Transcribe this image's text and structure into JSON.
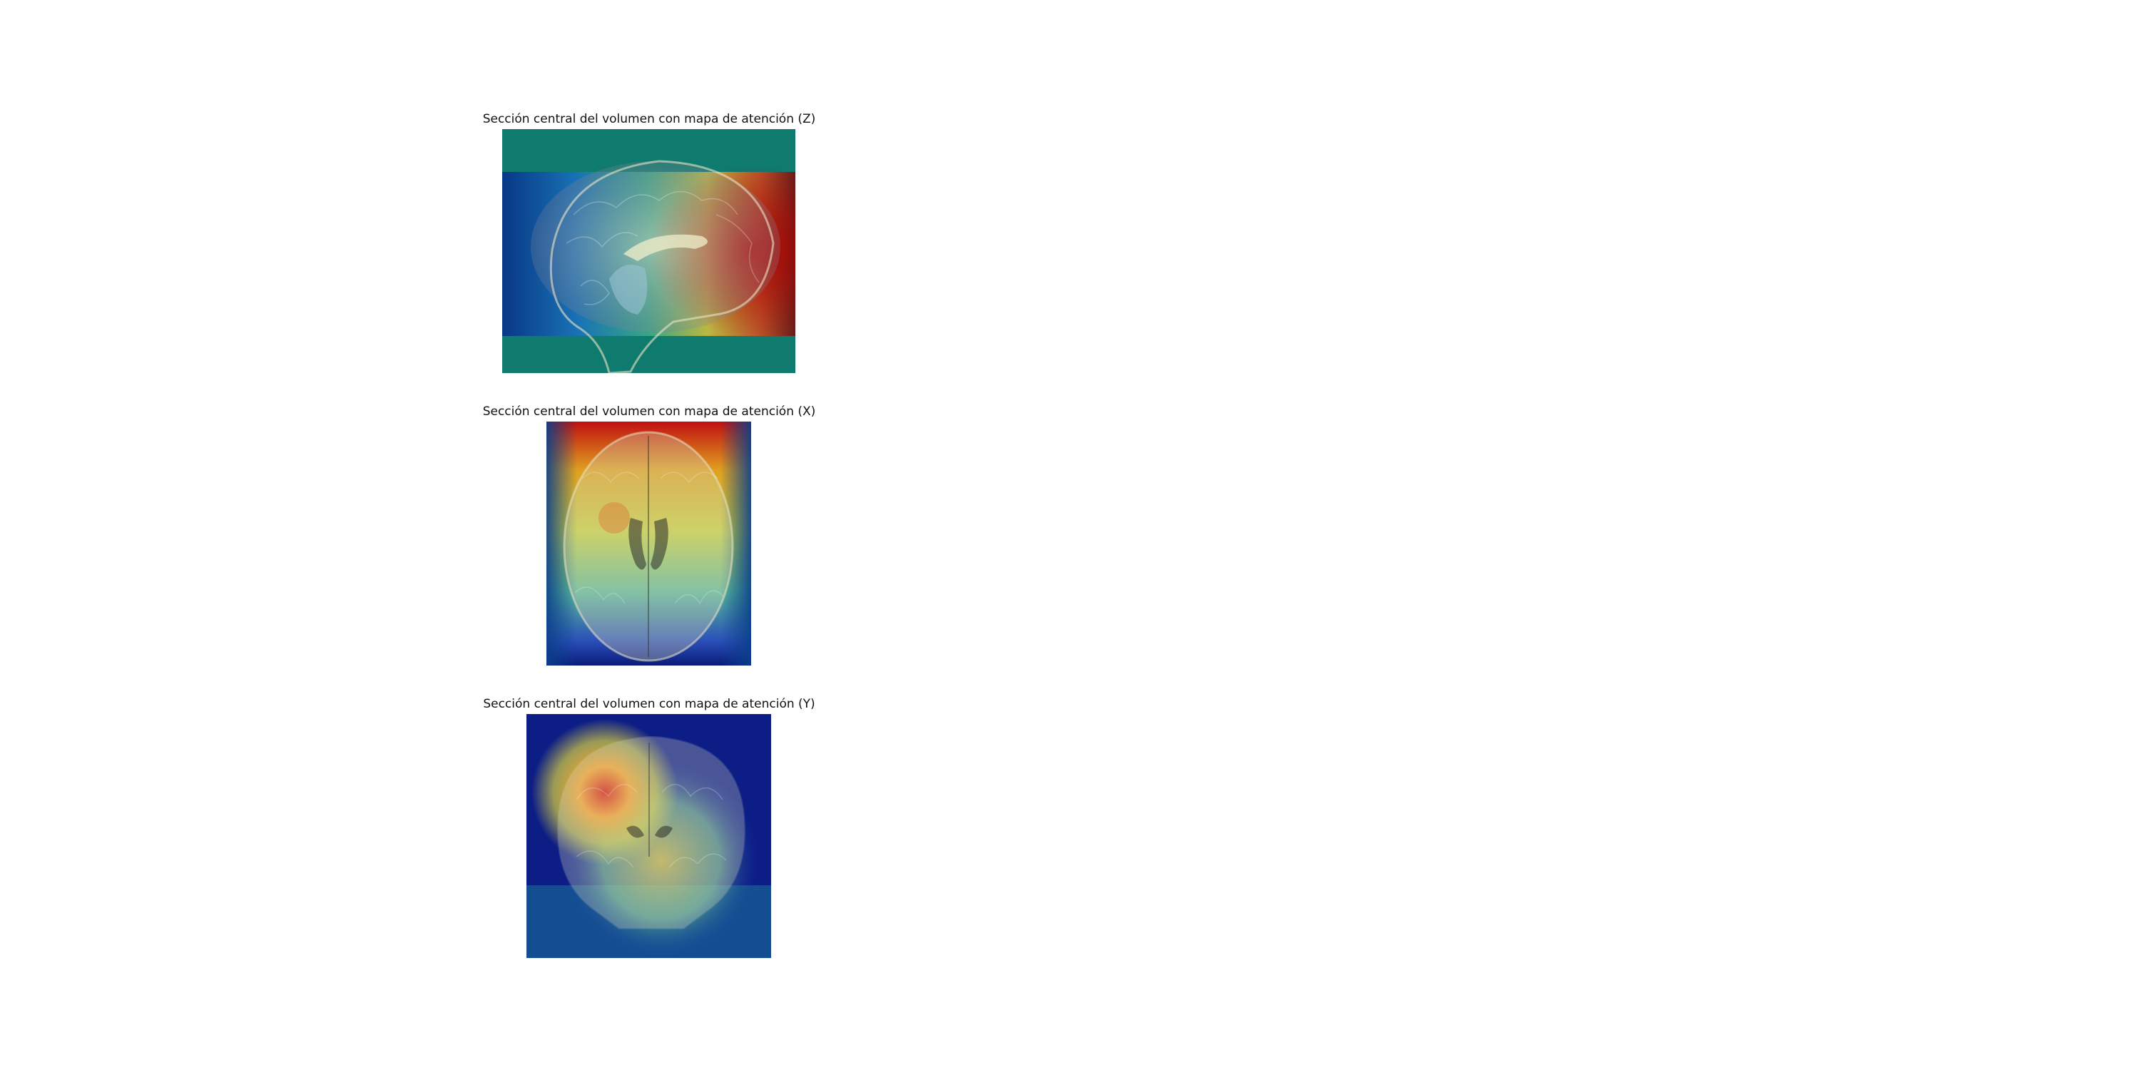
{
  "panels": [
    {
      "title": "Sección central del volumen con mapa de atención (Z)",
      "view": "sagittal"
    },
    {
      "title": "Sección central del volumen con mapa de atención (X)",
      "view": "axial"
    },
    {
      "title": "Sección central del volumen con mapa de atención (Y)",
      "view": "coronal"
    }
  ],
  "colormap": "jet"
}
